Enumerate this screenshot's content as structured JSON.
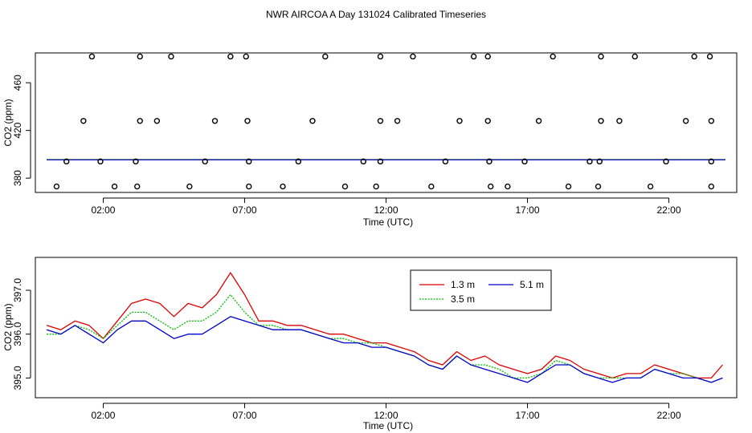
{
  "title": "NWR AIRCOA A  Day 131024  Calibrated Timeseries",
  "colors": {
    "h1": "#dd0000",
    "h2": "#00bb00",
    "h3": "#0000cc",
    "axis": "#000000"
  },
  "chart_data": [
    {
      "type": "scatter",
      "xlabel": "Time (UTC)",
      "ylabel": "CO2 (ppm)",
      "xlim": [
        -0.4,
        24.4
      ],
      "ylim": [
        368,
        485
      ],
      "xticks": [
        2,
        7,
        12,
        17,
        22
      ],
      "xtick_labels": [
        "02:00",
        "07:00",
        "12:00",
        "17:00",
        "22:00"
      ],
      "yticks": [
        380,
        420,
        460
      ],
      "ytick_labels": [
        "380",
        "420",
        "460"
      ],
      "cal_points": [
        {
          "x": 1.6,
          "y": 482
        },
        {
          "x": 3.3,
          "y": 482
        },
        {
          "x": 4.4,
          "y": 482
        },
        {
          "x": 6.5,
          "y": 482
        },
        {
          "x": 7.05,
          "y": 482
        },
        {
          "x": 9.85,
          "y": 482
        },
        {
          "x": 11.8,
          "y": 482
        },
        {
          "x": 12.95,
          "y": 482
        },
        {
          "x": 15.1,
          "y": 482
        },
        {
          "x": 15.6,
          "y": 482
        },
        {
          "x": 17.9,
          "y": 482
        },
        {
          "x": 19.6,
          "y": 482
        },
        {
          "x": 20.8,
          "y": 482
        },
        {
          "x": 22.9,
          "y": 482
        },
        {
          "x": 23.45,
          "y": 482
        },
        {
          "x": 1.3,
          "y": 428
        },
        {
          "x": 3.3,
          "y": 428
        },
        {
          "x": 3.9,
          "y": 428
        },
        {
          "x": 5.95,
          "y": 428
        },
        {
          "x": 7.1,
          "y": 428
        },
        {
          "x": 9.4,
          "y": 428
        },
        {
          "x": 11.8,
          "y": 428
        },
        {
          "x": 12.4,
          "y": 428
        },
        {
          "x": 14.6,
          "y": 428
        },
        {
          "x": 15.6,
          "y": 428
        },
        {
          "x": 17.4,
          "y": 428
        },
        {
          "x": 19.6,
          "y": 428
        },
        {
          "x": 20.25,
          "y": 428
        },
        {
          "x": 22.6,
          "y": 428
        },
        {
          "x": 23.5,
          "y": 428
        },
        {
          "x": 1.9,
          "y": 394
        },
        {
          "x": 0.7,
          "y": 394
        },
        {
          "x": 3.15,
          "y": 394
        },
        {
          "x": 5.6,
          "y": 394
        },
        {
          "x": 7.15,
          "y": 394
        },
        {
          "x": 8.9,
          "y": 394
        },
        {
          "x": 11.2,
          "y": 394
        },
        {
          "x": 11.8,
          "y": 394
        },
        {
          "x": 14.1,
          "y": 394
        },
        {
          "x": 15.65,
          "y": 394
        },
        {
          "x": 16.9,
          "y": 394
        },
        {
          "x": 19.2,
          "y": 394
        },
        {
          "x": 19.55,
          "y": 394
        },
        {
          "x": 21.9,
          "y": 394
        },
        {
          "x": 23.5,
          "y": 394
        },
        {
          "x": 0.35,
          "y": 373
        },
        {
          "x": 2.4,
          "y": 373
        },
        {
          "x": 3.2,
          "y": 373
        },
        {
          "x": 5.05,
          "y": 373
        },
        {
          "x": 7.15,
          "y": 373
        },
        {
          "x": 8.35,
          "y": 373
        },
        {
          "x": 10.55,
          "y": 373
        },
        {
          "x": 11.65,
          "y": 373
        },
        {
          "x": 13.6,
          "y": 373
        },
        {
          "x": 15.7,
          "y": 373
        },
        {
          "x": 16.3,
          "y": 373
        },
        {
          "x": 18.45,
          "y": 373
        },
        {
          "x": 19.5,
          "y": 373
        },
        {
          "x": 21.35,
          "y": 373
        },
        {
          "x": 23.5,
          "y": 373
        }
      ],
      "series": [
        {
          "name": "1.3 m",
          "x": [
            0,
            24
          ],
          "values": [
            395.6,
            395.6
          ]
        },
        {
          "name": "3.5 m",
          "x": [
            0,
            24
          ],
          "values": [
            395.5,
            395.5
          ]
        },
        {
          "name": "5.1 m",
          "x": [
            0,
            24
          ],
          "values": [
            395.4,
            395.4
          ]
        }
      ]
    },
    {
      "type": "line",
      "xlabel": "Time (UTC)",
      "ylabel": "CO2 (ppm)",
      "xlim": [
        -0.4,
        24.4
      ],
      "ylim": [
        394.55,
        397.75
      ],
      "xticks": [
        2,
        7,
        12,
        17,
        22
      ],
      "xtick_labels": [
        "02:00",
        "07:00",
        "12:00",
        "17:00",
        "22:00"
      ],
      "yticks": [
        395.0,
        396.0,
        397.0
      ],
      "ytick_labels": [
        "395.0",
        "396.0",
        "397.0"
      ],
      "legend": {
        "placement": "top-center",
        "entries": [
          "1.3 m",
          "3.5 m",
          "5.1 m"
        ]
      },
      "x": [
        0,
        0.5,
        1,
        1.5,
        2,
        2.5,
        3,
        3.5,
        4,
        4.5,
        5,
        5.5,
        6,
        6.5,
        7,
        7.5,
        8,
        8.5,
        9,
        9.5,
        10,
        10.5,
        11,
        11.5,
        12,
        12.5,
        13,
        13.5,
        14,
        14.5,
        15,
        15.5,
        16,
        16.5,
        17,
        17.5,
        18,
        18.5,
        19,
        19.5,
        20,
        20.5,
        21,
        21.5,
        22,
        22.5,
        23,
        23.5,
        23.9
      ],
      "series": [
        {
          "name": "1.3 m",
          "values": [
            396.2,
            396.1,
            396.3,
            396.2,
            395.9,
            396.3,
            396.7,
            396.8,
            396.7,
            396.4,
            396.7,
            396.6,
            396.9,
            397.4,
            396.9,
            396.3,
            396.3,
            396.2,
            396.2,
            396.1,
            396.0,
            396.0,
            395.9,
            395.8,
            395.8,
            395.7,
            395.6,
            395.4,
            395.3,
            395.6,
            395.4,
            395.5,
            395.3,
            395.2,
            395.1,
            395.2,
            395.5,
            395.4,
            395.2,
            395.1,
            395.0,
            395.1,
            395.1,
            395.3,
            395.2,
            395.1,
            395.0,
            395.0,
            395.3
          ]
        },
        {
          "name": "3.5 m",
          "values": [
            396.0,
            396.0,
            396.2,
            396.1,
            395.9,
            396.2,
            396.5,
            396.5,
            396.3,
            396.1,
            396.3,
            396.3,
            396.5,
            396.9,
            396.5,
            396.2,
            396.2,
            396.1,
            396.1,
            396.0,
            395.9,
            395.9,
            395.8,
            395.8,
            395.7,
            395.6,
            395.5,
            395.3,
            395.2,
            395.5,
            395.3,
            395.3,
            395.2,
            395.0,
            395.0,
            395.1,
            395.4,
            395.3,
            395.1,
            395.0,
            395.0,
            395.0,
            395.0,
            395.2,
            395.1,
            395.1,
            395.0,
            394.9,
            395.0
          ]
        },
        {
          "name": "5.1 m",
          "values": [
            396.1,
            396.0,
            396.2,
            396.0,
            395.8,
            396.1,
            396.3,
            396.3,
            396.1,
            395.9,
            396.0,
            396.0,
            396.2,
            396.4,
            396.3,
            396.2,
            396.1,
            396.1,
            396.1,
            396.0,
            395.9,
            395.8,
            395.8,
            395.7,
            395.7,
            395.6,
            395.5,
            395.3,
            395.2,
            395.5,
            395.3,
            395.2,
            395.1,
            395.0,
            394.9,
            395.1,
            395.3,
            395.3,
            395.1,
            395.0,
            394.9,
            395.0,
            395.0,
            395.2,
            395.1,
            395.0,
            395.0,
            394.9,
            395.0
          ]
        }
      ]
    }
  ]
}
